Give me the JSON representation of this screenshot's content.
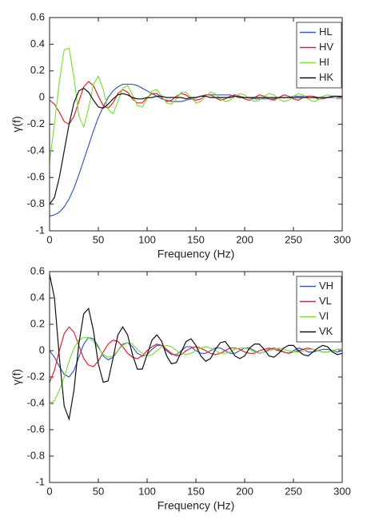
{
  "chart_data": [
    {
      "type": "line",
      "x_label": "Frequency (Hz)",
      "y_label": "γ(f)",
      "legend": "upper right",
      "x": [
        0,
        5,
        10,
        15,
        20,
        25,
        30,
        35,
        40,
        45,
        50,
        55,
        60,
        65,
        70,
        75,
        80,
        85,
        90,
        95,
        100,
        105,
        110,
        115,
        120,
        125,
        130,
        135,
        140,
        145,
        150,
        155,
        160,
        165,
        170,
        175,
        180,
        185,
        190,
        195,
        200,
        205,
        210,
        215,
        220,
        225,
        230,
        235,
        240,
        245,
        250,
        255,
        260,
        265,
        270,
        275,
        280,
        285,
        290,
        295,
        300
      ],
      "xlim": [
        0,
        300
      ],
      "xticks": [
        0,
        50,
        100,
        150,
        200,
        250,
        300
      ],
      "ylim": [
        -1,
        0.6
      ],
      "yticks": [
        -1,
        -0.8,
        -0.6,
        -0.4,
        -0.2,
        0,
        0.2,
        0.4,
        0.6
      ],
      "series": [
        {
          "name": "HL",
          "color": "#3a5bc7",
          "values": [
            -0.89,
            -0.88,
            -0.86,
            -0.82,
            -0.76,
            -0.68,
            -0.58,
            -0.47,
            -0.36,
            -0.25,
            -0.15,
            -0.07,
            0.0,
            0.05,
            0.08,
            0.1,
            0.1,
            0.1,
            0.09,
            0.07,
            0.05,
            0.03,
            0.01,
            -0.01,
            -0.02,
            -0.03,
            -0.03,
            -0.03,
            -0.02,
            -0.01,
            0.0,
            0.01,
            0.02,
            0.02,
            0.02,
            0.02,
            0.02,
            0.02,
            0.01,
            0.01,
            0.0,
            0.0,
            -0.01,
            -0.01,
            -0.01,
            -0.01,
            -0.01,
            0.0,
            0.0,
            0.0,
            0.01,
            0.01,
            0.01,
            0.01,
            0.01,
            0.0,
            0.0,
            0.0,
            0.0,
            0.0,
            0.01
          ]
        },
        {
          "name": "HV",
          "color": "#e8202a",
          "values": [
            -0.02,
            -0.05,
            -0.11,
            -0.18,
            -0.2,
            -0.14,
            -0.03,
            0.08,
            0.12,
            0.09,
            0.01,
            -0.06,
            -0.08,
            -0.04,
            0.03,
            0.06,
            0.04,
            -0.01,
            -0.04,
            -0.04,
            0.0,
            0.03,
            0.03,
            0.0,
            -0.03,
            -0.02,
            0.01,
            0.03,
            0.02,
            -0.01,
            -0.02,
            -0.01,
            0.02,
            0.02,
            0.0,
            -0.02,
            -0.01,
            0.01,
            0.02,
            0.01,
            -0.01,
            -0.02,
            0.0,
            0.02,
            0.01,
            -0.01,
            -0.02,
            0.0,
            0.02,
            0.01,
            -0.01,
            -0.02,
            0.0,
            0.01,
            0.01,
            -0.01,
            -0.01,
            0.0,
            0.01,
            0.01,
            0.0
          ]
        },
        {
          "name": "HI",
          "color": "#7ee03a",
          "values": [
            -0.48,
            -0.2,
            0.12,
            0.36,
            0.37,
            0.15,
            -0.14,
            -0.22,
            -0.08,
            0.1,
            0.16,
            0.06,
            -0.09,
            -0.12,
            -0.03,
            0.07,
            0.09,
            0.02,
            -0.06,
            -0.07,
            -0.01,
            0.05,
            0.06,
            0.01,
            -0.04,
            -0.05,
            -0.01,
            0.04,
            0.04,
            0.0,
            -0.04,
            -0.03,
            0.01,
            0.04,
            0.03,
            -0.01,
            -0.03,
            -0.02,
            0.01,
            0.03,
            0.02,
            -0.01,
            -0.03,
            -0.02,
            0.01,
            0.03,
            0.02,
            -0.01,
            -0.03,
            -0.02,
            0.01,
            0.03,
            0.02,
            -0.01,
            -0.03,
            -0.02,
            0.01,
            0.02,
            0.01,
            -0.01,
            -0.01
          ]
        },
        {
          "name": "HK",
          "color": "#111111",
          "values": [
            -0.8,
            -0.75,
            -0.6,
            -0.4,
            -0.2,
            -0.04,
            0.05,
            0.07,
            0.04,
            -0.02,
            -0.07,
            -0.08,
            -0.05,
            -0.01,
            0.02,
            0.03,
            0.02,
            0.0,
            -0.01,
            -0.01,
            0.0,
            0.0,
            0.01,
            0.01,
            0.0,
            0.0,
            0.0,
            0.0,
            -0.01,
            0.0,
            0.0,
            0.01,
            0.01,
            0.0,
            0.0,
            0.0,
            0.0,
            0.0,
            0.01,
            0.0,
            0.0,
            0.0,
            0.0,
            0.0,
            0.0,
            0.0,
            0.0,
            0.0,
            0.0,
            0.0,
            0.0,
            0.0,
            0.0,
            0.0,
            0.0,
            0.0,
            0.0,
            0.0,
            0.01,
            0.01,
            0.01
          ]
        }
      ]
    },
    {
      "type": "line",
      "x_label": "Frequency (Hz)",
      "y_label": "γ(f)",
      "legend": "upper right",
      "x": [
        0,
        5,
        10,
        15,
        20,
        25,
        30,
        35,
        40,
        45,
        50,
        55,
        60,
        65,
        70,
        75,
        80,
        85,
        90,
        95,
        100,
        105,
        110,
        115,
        120,
        125,
        130,
        135,
        140,
        145,
        150,
        155,
        160,
        165,
        170,
        175,
        180,
        185,
        190,
        195,
        200,
        205,
        210,
        215,
        220,
        225,
        230,
        235,
        240,
        245,
        250,
        255,
        260,
        265,
        270,
        275,
        280,
        285,
        290,
        295,
        300
      ],
      "xlim": [
        0,
        300
      ],
      "xticks": [
        0,
        50,
        100,
        150,
        200,
        250,
        300
      ],
      "ylim": [
        -1,
        0.6
      ],
      "yticks": [
        -1,
        -0.8,
        -0.6,
        -0.4,
        -0.2,
        0,
        0.2,
        0.4,
        0.6
      ],
      "series": [
        {
          "name": "VH",
          "color": "#3a5bc7",
          "values": [
            0.0,
            -0.05,
            -0.12,
            -0.18,
            -0.2,
            -0.15,
            -0.05,
            0.05,
            0.1,
            0.09,
            0.03,
            -0.04,
            -0.07,
            -0.05,
            0.0,
            0.05,
            0.06,
            0.03,
            -0.02,
            -0.04,
            -0.03,
            0.01,
            0.04,
            0.04,
            0.0,
            -0.03,
            -0.03,
            0.0,
            0.03,
            0.03,
            0.0,
            -0.02,
            -0.02,
            0.0,
            0.02,
            0.02,
            0.0,
            -0.02,
            -0.02,
            0.0,
            0.02,
            0.02,
            0.0,
            -0.02,
            -0.01,
            0.01,
            0.02,
            0.01,
            -0.01,
            -0.02,
            0.0,
            0.02,
            0.01,
            -0.01,
            -0.01,
            0.0,
            0.01,
            0.01,
            0.0,
            -0.01,
            0.0
          ]
        },
        {
          "name": "VL",
          "color": "#e8202a",
          "values": [
            -0.24,
            -0.15,
            0.0,
            0.13,
            0.18,
            0.14,
            0.04,
            -0.06,
            -0.11,
            -0.12,
            -0.08,
            -0.01,
            0.05,
            0.08,
            0.07,
            0.03,
            -0.02,
            -0.05,
            -0.06,
            -0.04,
            0.0,
            0.03,
            0.05,
            0.04,
            0.01,
            -0.02,
            -0.04,
            -0.03,
            0.0,
            0.02,
            0.03,
            0.02,
            0.0,
            -0.02,
            -0.03,
            -0.02,
            0.0,
            0.02,
            0.02,
            0.01,
            -0.01,
            -0.02,
            -0.02,
            0.0,
            0.01,
            0.02,
            0.01,
            0.0,
            -0.01,
            -0.02,
            -0.01,
            0.0,
            0.01,
            0.02,
            0.01,
            0.0,
            -0.01,
            -0.01,
            0.0,
            0.01,
            0.01
          ]
        },
        {
          "name": "VI",
          "color": "#7ee03a",
          "values": [
            -0.4,
            -0.38,
            -0.3,
            -0.2,
            -0.08,
            0.02,
            0.08,
            0.1,
            0.1,
            0.07,
            0.02,
            -0.03,
            -0.05,
            -0.04,
            0.0,
            0.04,
            0.06,
            0.05,
            0.01,
            -0.02,
            -0.04,
            -0.03,
            0.0,
            0.03,
            0.04,
            0.03,
            0.0,
            -0.02,
            -0.03,
            -0.02,
            0.0,
            0.02,
            0.03,
            0.02,
            0.0,
            -0.02,
            -0.02,
            -0.01,
            0.01,
            0.02,
            0.02,
            0.01,
            -0.01,
            -0.02,
            -0.01,
            0.0,
            0.01,
            0.02,
            0.01,
            0.0,
            -0.01,
            -0.01,
            0.0,
            0.01,
            0.01,
            0.0,
            -0.01,
            -0.01,
            0.0,
            0.01,
            0.01
          ]
        },
        {
          "name": "VK",
          "color": "#111111",
          "values": [
            0.58,
            0.4,
            -0.05,
            -0.42,
            -0.52,
            -0.3,
            0.05,
            0.28,
            0.32,
            0.15,
            -0.1,
            -0.24,
            -0.23,
            -0.06,
            0.12,
            0.18,
            0.12,
            -0.03,
            -0.14,
            -0.14,
            -0.03,
            0.08,
            0.12,
            0.07,
            -0.04,
            -0.1,
            -0.09,
            -0.01,
            0.07,
            0.09,
            0.04,
            -0.04,
            -0.08,
            -0.06,
            0.01,
            0.06,
            0.07,
            0.02,
            -0.04,
            -0.06,
            -0.04,
            0.02,
            0.05,
            0.05,
            0.01,
            -0.04,
            -0.05,
            -0.02,
            0.02,
            0.04,
            0.04,
            0.0,
            -0.03,
            -0.04,
            -0.01,
            0.02,
            0.04,
            0.03,
            -0.01,
            -0.03,
            -0.02
          ]
        }
      ]
    }
  ]
}
